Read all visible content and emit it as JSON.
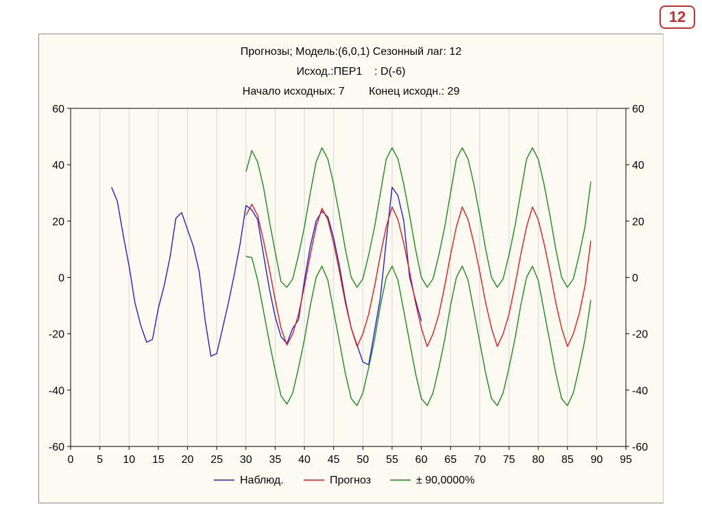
{
  "slide_number": "12",
  "chart_data": {
    "type": "line",
    "title_lines": [
      "Прогнозы; Модель:(6,0,1) Сезонный лаг: 12",
      "Исход.:ПЕР1    : D(-6)",
      "Начало исходных: 7        Конец исходн.: 29"
    ],
    "xlim": [
      0,
      95
    ],
    "ylim": [
      -60,
      60
    ],
    "x_ticks": [
      0,
      5,
      10,
      15,
      20,
      25,
      30,
      35,
      40,
      45,
      50,
      55,
      60,
      65,
      70,
      75,
      80,
      85,
      90,
      95
    ],
    "y_ticks": [
      60,
      40,
      20,
      0,
      -20,
      -40,
      -60
    ],
    "grid": true,
    "legend_position": "bottom",
    "series": [
      {
        "name": "Наблюд.",
        "color": "#1f1fd6",
        "x": [
          7,
          8,
          9,
          10,
          11,
          12,
          13,
          14,
          15,
          16,
          17,
          18,
          19,
          20,
          21,
          22,
          23,
          24,
          25,
          26,
          27,
          28,
          29,
          30,
          31,
          32,
          33,
          34,
          35,
          36,
          37,
          38,
          39,
          40,
          41,
          42,
          43,
          44,
          45,
          46,
          47,
          48,
          49,
          50,
          51,
          52,
          53,
          54,
          55,
          56,
          57,
          58,
          59,
          60
        ],
        "values": [
          32,
          27,
          15,
          4,
          -9,
          -17,
          -23,
          -22,
          -11,
          -3,
          7,
          21,
          23,
          17,
          11,
          2,
          -15,
          -28,
          -27,
          -18,
          -9,
          1,
          12,
          25.5,
          24,
          20.5,
          8,
          -4,
          -14,
          -21,
          -23.5,
          -18,
          -15,
          -1,
          11,
          20,
          23.5,
          21.5,
          14,
          4,
          -8,
          -18,
          -24,
          -30,
          -31,
          -19,
          -7,
          13,
          32,
          29,
          20,
          0,
          -8,
          -15.5
        ]
      },
      {
        "name": "Прогноз",
        "color": "#e01b1b",
        "x": [
          30,
          31,
          32,
          33,
          34,
          35,
          36,
          37,
          38,
          39,
          40,
          41,
          42,
          43,
          44,
          45,
          46,
          47,
          48,
          49,
          50,
          51,
          52,
          53,
          54,
          55,
          56,
          57,
          58,
          59,
          60,
          61,
          62,
          63,
          64,
          65,
          66,
          67,
          68,
          69,
          70,
          71,
          72,
          73,
          74,
          75,
          76,
          77,
          78,
          79,
          80,
          81,
          82,
          83,
          84,
          85,
          86,
          87,
          88,
          89
        ],
        "values": [
          22,
          26,
          22,
          13,
          3,
          -8,
          -18,
          -24,
          -20,
          -13,
          -3,
          8,
          18,
          24.5,
          20.5,
          12,
          2,
          -9,
          -18,
          -24.5,
          -20,
          -13,
          -3,
          8,
          18,
          25,
          20.5,
          12,
          2,
          -9,
          -18,
          -24.5,
          -20,
          -13,
          -3,
          8,
          18,
          25,
          20.5,
          12,
          2,
          -9,
          -18,
          -24.5,
          -20,
          -13,
          -3,
          8,
          18,
          25,
          20.5,
          12,
          2,
          -9,
          -18,
          -24.5,
          -20,
          -13,
          -3,
          13
        ]
      },
      {
        "name": "± 90,0000%",
        "color": "#1a8a1a",
        "x": [
          30,
          31,
          32,
          33,
          34,
          35,
          36,
          37,
          38,
          39,
          40,
          41,
          42,
          43,
          44,
          45,
          46,
          47,
          48,
          49,
          50,
          51,
          52,
          53,
          54,
          55,
          56,
          57,
          58,
          59,
          60,
          61,
          62,
          63,
          64,
          65,
          66,
          67,
          68,
          69,
          70,
          71,
          72,
          73,
          74,
          75,
          76,
          77,
          78,
          79,
          80,
          81,
          82,
          83,
          84,
          85,
          86,
          87,
          88,
          89
        ],
        "values": [
          37.5,
          45,
          41,
          32,
          20,
          9,
          -1.5,
          -3.5,
          -0.5,
          8,
          18,
          30,
          41,
          46,
          42,
          33,
          22,
          10,
          0,
          -3.5,
          -0.5,
          8,
          18,
          30,
          42,
          46,
          42,
          33,
          22,
          10,
          0,
          -3.5,
          -0.5,
          8,
          18,
          30,
          42,
          46,
          42,
          33,
          22,
          10,
          0,
          -3.5,
          -0.5,
          8,
          18,
          30,
          42,
          46,
          42,
          33,
          22,
          10,
          0,
          -3.5,
          -0.5,
          8,
          18,
          34
        ]
      },
      {
        "name": "± 90,0000%",
        "color": "#1a8a1a",
        "x": [
          30,
          31,
          32,
          33,
          34,
          35,
          36,
          37,
          38,
          39,
          40,
          41,
          42,
          43,
          44,
          45,
          46,
          47,
          48,
          49,
          50,
          51,
          52,
          53,
          54,
          55,
          56,
          57,
          58,
          59,
          60,
          61,
          62,
          63,
          64,
          65,
          66,
          67,
          68,
          69,
          70,
          71,
          72,
          73,
          74,
          75,
          76,
          77,
          78,
          79,
          80,
          81,
          82,
          83,
          84,
          85,
          86,
          87,
          88,
          89
        ],
        "values": [
          7.5,
          7,
          -1,
          -12,
          -23,
          -33,
          -42,
          -45,
          -41,
          -32,
          -22,
          -10,
          0,
          4,
          -1,
          -12,
          -23,
          -34,
          -43,
          -45.5,
          -41,
          -32,
          -22,
          -10,
          0,
          4,
          -1,
          -12,
          -23,
          -34,
          -43,
          -45.5,
          -41,
          -32,
          -22,
          -10,
          0,
          4,
          -1,
          -12,
          -23,
          -34,
          -43,
          -45.5,
          -41,
          -32,
          -22,
          -10,
          0,
          4,
          -1,
          -12,
          -23,
          -34,
          -43,
          -45.5,
          -41,
          -32,
          -22,
          -8
        ]
      }
    ],
    "legend": [
      {
        "label": "Наблюд.",
        "color": "#1f1fd6"
      },
      {
        "label": "Прогноз",
        "color": "#e01b1b"
      },
      {
        "label": "± 90,0000%",
        "color": "#1a8a1a"
      }
    ]
  }
}
